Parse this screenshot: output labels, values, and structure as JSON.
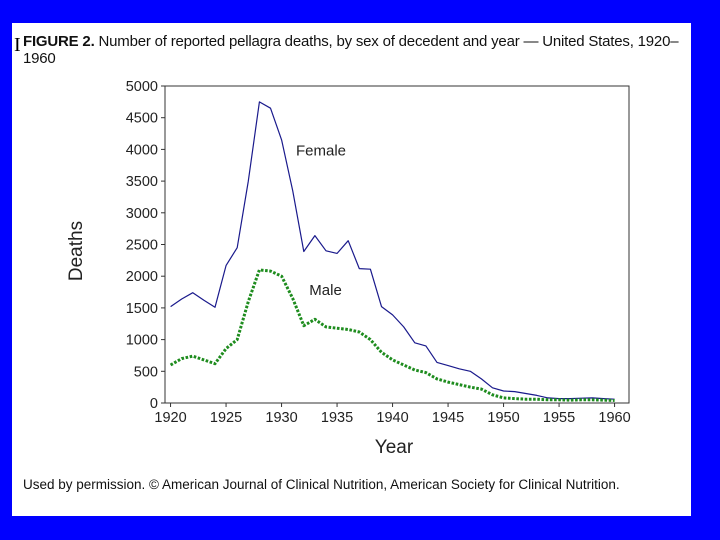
{
  "slide": {
    "corner_letter": "I"
  },
  "figure": {
    "label": "FIGURE 2.",
    "title": "Number of reported pellagra deaths, by sex of decedent and year — United States, 1920–1960"
  },
  "credit": "Used by permission. © American Journal of Clinical Nutrition, American Society for Clinical Nutrition.",
  "colors": {
    "background": "#0000ff",
    "female_line": "#1a1a8c",
    "male_line": "#1e8c1e"
  },
  "chart_data": {
    "type": "line",
    "title": "Number of reported pellagra deaths, by sex of decedent and year — United States, 1920–1960",
    "xlabel": "Year",
    "ylabel": "Deaths",
    "xlim": [
      1919.5,
      1961.3
    ],
    "ylim": [
      0,
      5000
    ],
    "xticks": [
      1920,
      1925,
      1930,
      1935,
      1940,
      1945,
      1950,
      1955,
      1960
    ],
    "yticks": [
      0,
      500,
      1000,
      1500,
      2000,
      2500,
      3000,
      3500,
      4000,
      4500,
      5000
    ],
    "grid": false,
    "legend": "inline labels",
    "x": [
      1920,
      1921,
      1922,
      1923,
      1924,
      1925,
      1926,
      1927,
      1928,
      1929,
      1930,
      1931,
      1932,
      1933,
      1934,
      1935,
      1936,
      1937,
      1938,
      1939,
      1940,
      1941,
      1942,
      1943,
      1944,
      1945,
      1946,
      1947,
      1948,
      1949,
      1950,
      1951,
      1952,
      1953,
      1954,
      1955,
      1956,
      1957,
      1958,
      1959,
      1960
    ],
    "series": [
      {
        "name": "Female",
        "label": "Female",
        "style": "solid",
        "values": [
          1520,
          1640,
          1740,
          1620,
          1510,
          2170,
          2450,
          3500,
          4750,
          4650,
          4150,
          3350,
          2390,
          2640,
          2400,
          2360,
          2560,
          2120,
          2110,
          1520,
          1390,
          1200,
          950,
          900,
          640,
          590,
          540,
          500,
          380,
          240,
          190,
          180,
          150,
          120,
          80,
          70,
          70,
          75,
          80,
          70,
          60
        ]
      },
      {
        "name": "Male",
        "label": "Male",
        "style": "dotted",
        "values": [
          600,
          700,
          740,
          680,
          620,
          860,
          1000,
          1600,
          2100,
          2080,
          2000,
          1650,
          1220,
          1320,
          1200,
          1180,
          1160,
          1120,
          1000,
          800,
          680,
          600,
          520,
          480,
          380,
          330,
          290,
          250,
          220,
          130,
          80,
          70,
          60,
          60,
          50,
          50,
          45,
          50,
          50,
          45,
          40
        ]
      }
    ]
  }
}
